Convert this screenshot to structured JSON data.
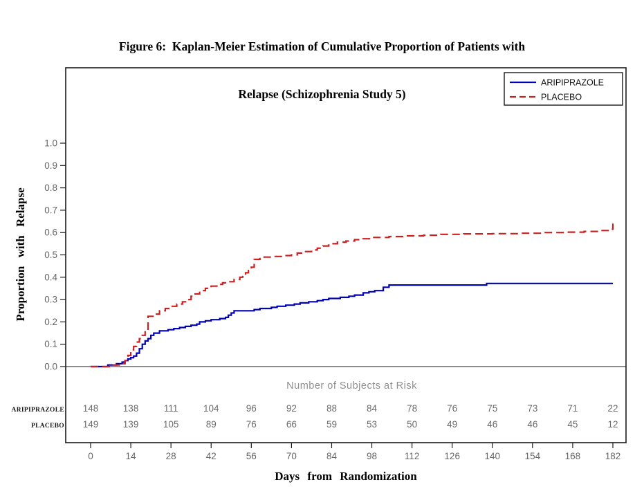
{
  "figure": {
    "title_line1": "Figure 6:  Kaplan-Meier Estimation of Cumulative Proportion of Patients with",
    "title_line2": "Relapse (Schizophrenia Study 5)"
  },
  "chart_data": {
    "type": "line",
    "subtype": "kaplan_meier_step",
    "title": "Figure 6: Kaplan-Meier Estimation of Cumulative Proportion of Patients with Relapse (Schizophrenia Study 5)",
    "xlabel": "Days from Randomization",
    "ylabel": "Proportion with Relapse",
    "xlim": [
      0,
      182
    ],
    "ylim": [
      0.0,
      1.0
    ],
    "xticks": [
      0,
      14,
      28,
      42,
      56,
      70,
      84,
      98,
      112,
      126,
      140,
      154,
      168,
      182
    ],
    "ytick_labels": [
      "0.0",
      "0.1",
      "0.2",
      "0.3",
      "0.4",
      "0.5",
      "0.6",
      "0.7",
      "0.8",
      "0.9",
      "1.0"
    ],
    "grid": false,
    "legend_position": "top-right",
    "series": [
      {
        "name": "ARIPIPRAZOLE",
        "color": "#0000b4",
        "line_style": "solid",
        "points": [
          [
            0,
            0
          ],
          [
            6,
            0.007
          ],
          [
            9,
            0.013
          ],
          [
            11,
            0.02
          ],
          [
            12,
            0.027
          ],
          [
            13,
            0.034
          ],
          [
            14,
            0.04
          ],
          [
            15,
            0.047
          ],
          [
            16,
            0.06
          ],
          [
            17,
            0.08
          ],
          [
            18,
            0.1
          ],
          [
            19,
            0.115
          ],
          [
            20,
            0.125
          ],
          [
            21,
            0.14
          ],
          [
            22,
            0.15
          ],
          [
            24,
            0.16
          ],
          [
            27,
            0.165
          ],
          [
            29,
            0.17
          ],
          [
            31,
            0.175
          ],
          [
            33,
            0.18
          ],
          [
            35,
            0.185
          ],
          [
            37,
            0.19
          ],
          [
            38,
            0.2
          ],
          [
            40,
            0.205
          ],
          [
            42,
            0.21
          ],
          [
            45,
            0.215
          ],
          [
            47,
            0.22
          ],
          [
            48,
            0.23
          ],
          [
            49,
            0.24
          ],
          [
            50,
            0.25
          ],
          [
            57,
            0.255
          ],
          [
            59,
            0.26
          ],
          [
            63,
            0.265
          ],
          [
            65,
            0.27
          ],
          [
            68,
            0.275
          ],
          [
            71,
            0.28
          ],
          [
            73,
            0.285
          ],
          [
            76,
            0.29
          ],
          [
            79,
            0.295
          ],
          [
            81,
            0.3
          ],
          [
            83,
            0.305
          ],
          [
            87,
            0.31
          ],
          [
            90,
            0.315
          ],
          [
            92,
            0.32
          ],
          [
            95,
            0.33
          ],
          [
            97,
            0.335
          ],
          [
            99,
            0.34
          ],
          [
            102,
            0.355
          ],
          [
            104,
            0.365
          ],
          [
            138,
            0.372
          ],
          [
            182,
            0.372
          ]
        ]
      },
      {
        "name": "PLACEBO",
        "color": "#cc2020",
        "line_style": "dashed",
        "points": [
          [
            0,
            0
          ],
          [
            7,
            0.007
          ],
          [
            10,
            0.013
          ],
          [
            12,
            0.027
          ],
          [
            13,
            0.05
          ],
          [
            14,
            0.075
          ],
          [
            15,
            0.09
          ],
          [
            16,
            0.11
          ],
          [
            17,
            0.125
          ],
          [
            18,
            0.14
          ],
          [
            19,
            0.155
          ],
          [
            20,
            0.225
          ],
          [
            22,
            0.235
          ],
          [
            24,
            0.25
          ],
          [
            26,
            0.26
          ],
          [
            28,
            0.27
          ],
          [
            30,
            0.28
          ],
          [
            32,
            0.29
          ],
          [
            34,
            0.3
          ],
          [
            35,
            0.315
          ],
          [
            36,
            0.325
          ],
          [
            38,
            0.34
          ],
          [
            40,
            0.35
          ],
          [
            42,
            0.36
          ],
          [
            44,
            0.368
          ],
          [
            46,
            0.375
          ],
          [
            48,
            0.38
          ],
          [
            50,
            0.39
          ],
          [
            52,
            0.4
          ],
          [
            53,
            0.41
          ],
          [
            54,
            0.42
          ],
          [
            55,
            0.43
          ],
          [
            56,
            0.445
          ],
          [
            57,
            0.48
          ],
          [
            59,
            0.49
          ],
          [
            63,
            0.493
          ],
          [
            67,
            0.497
          ],
          [
            70,
            0.5
          ],
          [
            72,
            0.508
          ],
          [
            74,
            0.515
          ],
          [
            77,
            0.522
          ],
          [
            79,
            0.53
          ],
          [
            81,
            0.54
          ],
          [
            83,
            0.55
          ],
          [
            86,
            0.557
          ],
          [
            89,
            0.562
          ],
          [
            92,
            0.568
          ],
          [
            95,
            0.572
          ],
          [
            98,
            0.578
          ],
          [
            104,
            0.582
          ],
          [
            110,
            0.585
          ],
          [
            116,
            0.588
          ],
          [
            122,
            0.592
          ],
          [
            130,
            0.594
          ],
          [
            140,
            0.595
          ],
          [
            150,
            0.597
          ],
          [
            158,
            0.6
          ],
          [
            166,
            0.602
          ],
          [
            172,
            0.605
          ],
          [
            177,
            0.609
          ],
          [
            181,
            0.615
          ],
          [
            182,
            0.64
          ]
        ]
      }
    ],
    "at_risk": {
      "title": "Number of Subjects at Risk",
      "days": [
        0,
        14,
        28,
        42,
        56,
        70,
        84,
        98,
        112,
        126,
        140,
        154,
        168,
        182
      ],
      "rows": [
        {
          "label": "ARIPIPRAZOLE",
          "counts": [
            148,
            138,
            111,
            104,
            96,
            92,
            88,
            84,
            78,
            76,
            75,
            73,
            71,
            22
          ]
        },
        {
          "label": "PLACEBO",
          "counts": [
            149,
            139,
            105,
            89,
            76,
            66,
            59,
            53,
            50,
            49,
            46,
            46,
            45,
            12
          ]
        }
      ]
    }
  }
}
